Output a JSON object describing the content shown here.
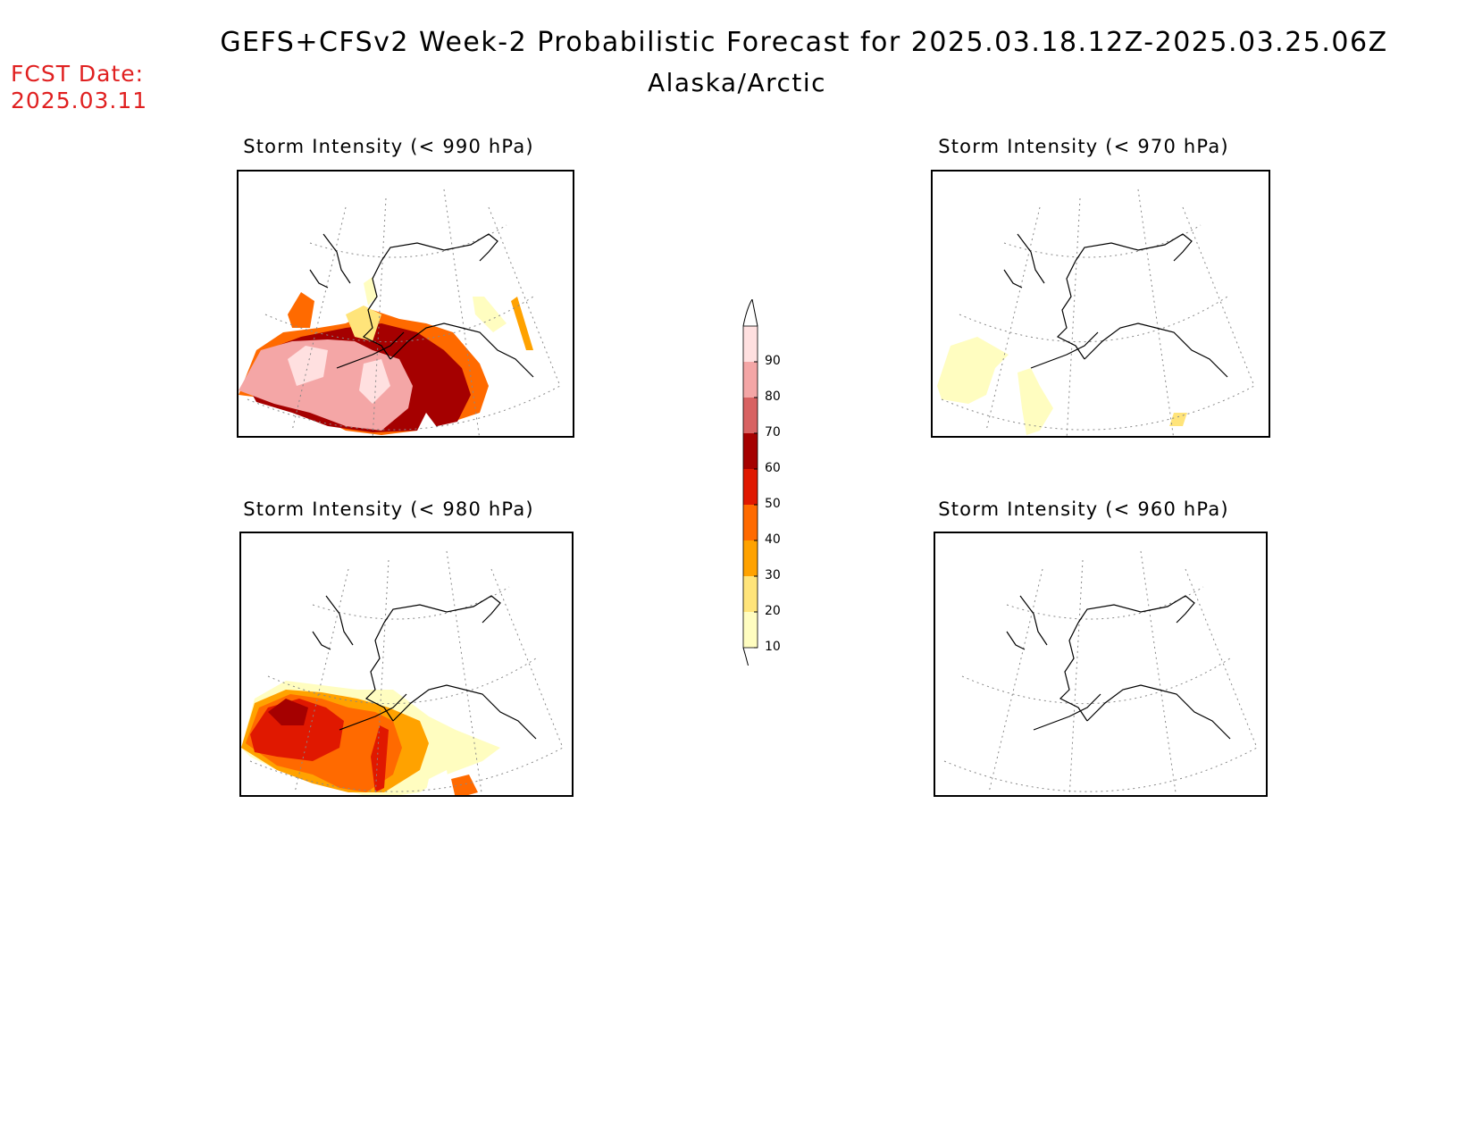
{
  "header": {
    "title": "GEFS+CFSv2 Week-2 Probabilistic Forecast for 2025.03.18.12Z-2025.03.25.06Z",
    "region": "Alaska/Arctic",
    "fcst_label": "FCST Date:",
    "fcst_date": "2025.03.11"
  },
  "panels": [
    {
      "id": "p990",
      "title": "Storm Intensity (< 990 hPa)"
    },
    {
      "id": "p970",
      "title": "Storm Intensity (< 970 hPa)"
    },
    {
      "id": "p980",
      "title": "Storm Intensity (< 980 hPa)"
    },
    {
      "id": "p960",
      "title": "Storm Intensity (< 960 hPa)"
    }
  ],
  "legend": {
    "levels": [
      "10",
      "20",
      "30",
      "40",
      "50",
      "60",
      "70",
      "80",
      "90"
    ],
    "colors": [
      "#fffdc0",
      "#ffe47a",
      "#ffa200",
      "#ff6a00",
      "#e01800",
      "#a50000",
      "#d86262",
      "#f4a6a6",
      "#ffe0e0"
    ]
  }
}
